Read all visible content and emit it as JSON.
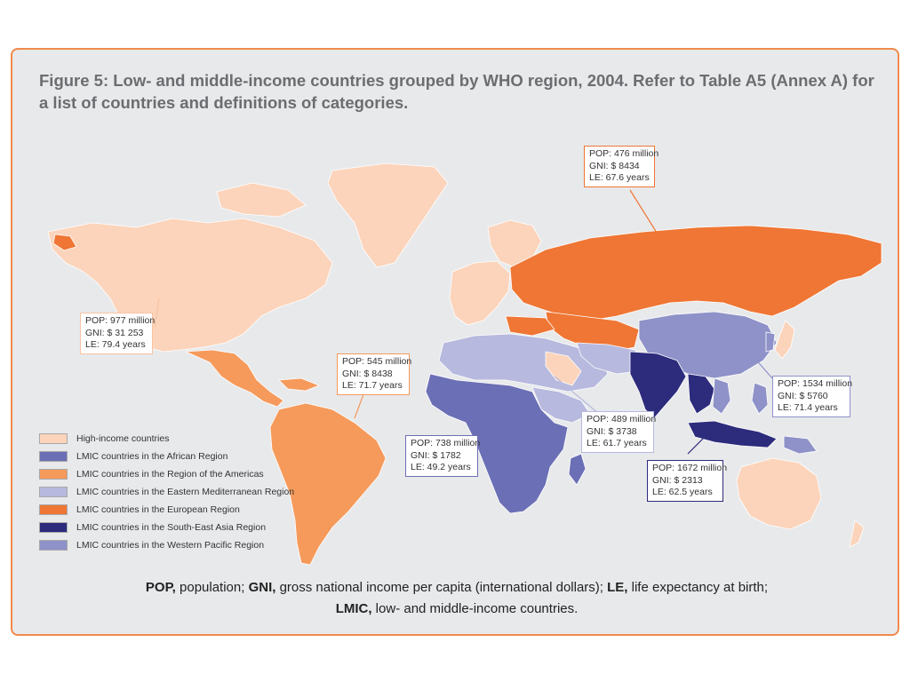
{
  "title": "Figure 5: Low- and middle-income countries grouped by WHO region, 2004. Refer to Table A5 (Annex A) for a list of countries and definitions of categories.",
  "colors": {
    "high_income": "#fbd4bb",
    "african": "#6b6fb5",
    "americas": "#f59a5b",
    "eastern_mediterranean": "#b7b9de",
    "european": "#ef7634",
    "south_east_asia": "#2d2b7c",
    "western_pacific": "#8f92c8",
    "panel_border": "#f08a4b",
    "ocean": "#e8e9eb"
  },
  "legend": [
    {
      "label": "High-income countries",
      "color": "#fbd4bb"
    },
    {
      "label": "LMIC countries in the African Region",
      "color": "#6b6fb5"
    },
    {
      "label": "LMIC countries in the Region of the Americas",
      "color": "#f59a5b"
    },
    {
      "label": "LMIC countries in the Eastern Mediterranean Region",
      "color": "#b7b9de"
    },
    {
      "label": "LMIC countries in the European Region",
      "color": "#ef7634"
    },
    {
      "label": "LMIC countries in the South-East Asia Region",
      "color": "#2d2b7c"
    },
    {
      "label": "LMIC countries in the Western Pacific Region",
      "color": "#8f92c8"
    }
  ],
  "callouts": {
    "high_income": {
      "pop": "POP: 977 million",
      "gni": "GNI:  $ 31 253",
      "le": "LE:     79.4 years",
      "border": "#f7c4a3"
    },
    "americas": {
      "pop": "POP: 545 million",
      "gni": "GNI:  $ 8438",
      "le": "LE:     71.7 years",
      "border": "#f59a5b"
    },
    "european": {
      "pop": "POP: 476 million",
      "gni": "GNI:  $ 8434",
      "le": "LE:     67.6 years",
      "border": "#ef7634"
    },
    "african": {
      "pop": "POP: 738 million",
      "gni": "GNI:  $ 1782",
      "le": "LE:     49.2 years",
      "border": "#6b6fb5"
    },
    "eastern_mediterranean": {
      "pop": "POP: 489 million",
      "gni": "GNI:  $ 3738",
      "le": "LE:     61.7 years",
      "border": "#b7b9de"
    },
    "south_east_asia": {
      "pop": "POP: 1672 million",
      "gni": "GNI:  $ 2313",
      "le": "LE:     62.5 years",
      "border": "#2d2b7c"
    },
    "western_pacific": {
      "pop": "POP: 1534 million",
      "gni": "GNI:  $ 5760",
      "le": "LE:     71.4 years",
      "border": "#8f92c8"
    }
  },
  "footnote": {
    "pop_key": "POP,",
    "pop_def": " population;  ",
    "gni_key": "GNI,",
    "gni_def": "  gross national income per capita (international dollars);  ",
    "le_key": "LE,",
    "le_def": "  life expectancy at birth;",
    "lmic_key": "LMIC,",
    "lmic_def": "  low- and middle-income countries."
  }
}
